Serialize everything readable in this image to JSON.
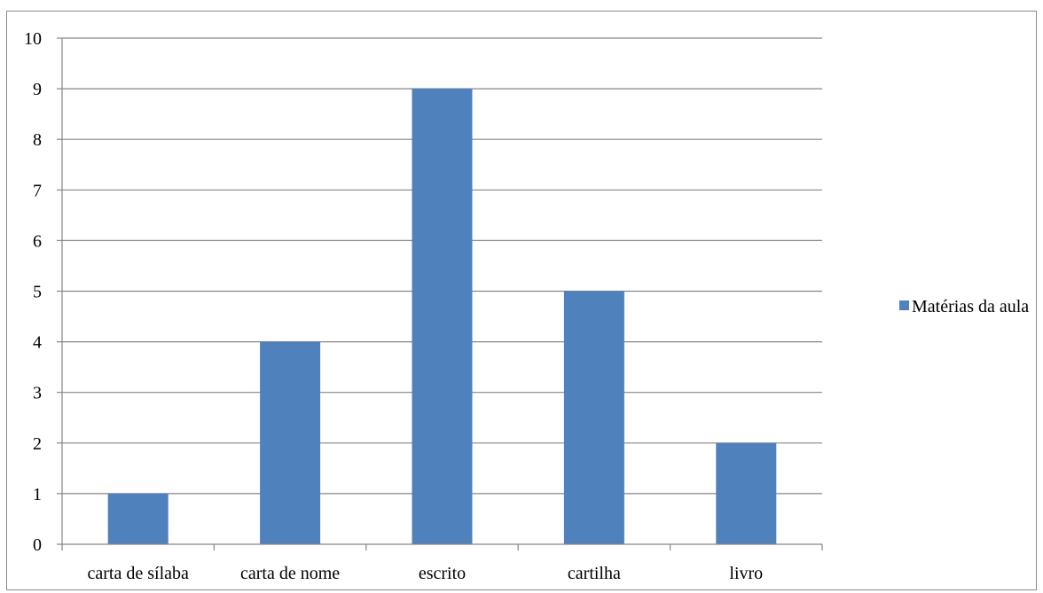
{
  "chart_data": {
    "type": "bar",
    "categories": [
      "carta de sílaba",
      "carta de nome",
      "escrito",
      "cartilha",
      "livro"
    ],
    "series": [
      {
        "name": "Matérias da aula",
        "values": [
          1,
          4,
          9,
          5,
          2
        ],
        "color": "#4f81bd"
      }
    ],
    "ylim": [
      0,
      10
    ],
    "yticks": [
      "0",
      "1",
      "2",
      "3",
      "4",
      "5",
      "6",
      "7",
      "8",
      "9",
      "10"
    ],
    "grid": true,
    "legend_position": "right"
  }
}
